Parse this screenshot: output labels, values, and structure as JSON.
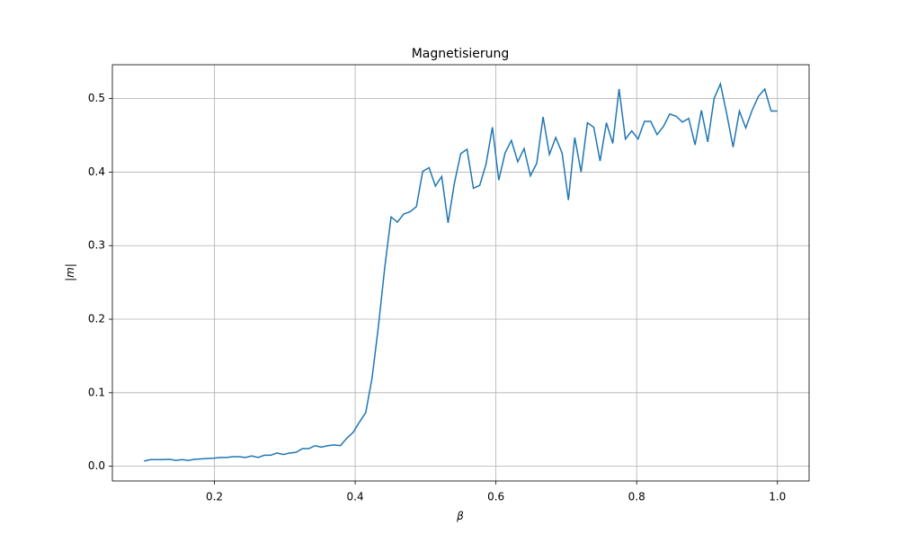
{
  "chart_data": {
    "type": "line",
    "title": "Magnetisierung",
    "xlabel": "β",
    "ylabel": "|m|",
    "x": [
      0.1,
      0.109,
      0.118,
      0.127,
      0.136,
      0.145,
      0.154,
      0.163,
      0.172,
      0.181,
      0.19,
      0.199,
      0.208,
      0.217,
      0.226,
      0.235,
      0.244,
      0.253,
      0.262,
      0.271,
      0.28,
      0.289,
      0.298,
      0.307,
      0.316,
      0.325,
      0.334,
      0.343,
      0.352,
      0.361,
      0.37,
      0.379,
      0.388,
      0.397,
      0.406,
      0.415,
      0.424,
      0.433,
      0.442,
      0.451,
      0.46,
      0.469,
      0.478,
      0.487,
      0.496,
      0.505,
      0.514,
      0.523,
      0.532,
      0.541,
      0.55,
      0.559,
      0.568,
      0.577,
      0.586,
      0.595,
      0.604,
      0.613,
      0.622,
      0.631,
      0.64,
      0.649,
      0.658,
      0.667,
      0.676,
      0.685,
      0.694,
      0.703,
      0.712,
      0.721,
      0.73,
      0.739,
      0.748,
      0.757,
      0.766,
      0.775,
      0.784,
      0.793,
      0.802,
      0.811,
      0.82,
      0.829,
      0.838,
      0.847,
      0.856,
      0.865,
      0.874,
      0.883,
      0.892,
      0.901,
      0.91,
      0.919,
      0.928,
      0.937,
      0.946,
      0.955,
      0.964,
      0.973,
      0.982,
      0.991,
      1.0
    ],
    "series": [
      {
        "name": "|m|",
        "color": "#1f77b4",
        "values": [
          0.007,
          0.009,
          0.009,
          0.009,
          0.0095,
          0.008,
          0.009,
          0.008,
          0.0095,
          0.01,
          0.0105,
          0.011,
          0.012,
          0.012,
          0.013,
          0.013,
          0.012,
          0.014,
          0.012,
          0.015,
          0.015,
          0.018,
          0.016,
          0.018,
          0.019,
          0.024,
          0.024,
          0.028,
          0.026,
          0.028,
          0.029,
          0.028,
          0.038,
          0.046,
          0.06,
          0.073,
          0.12,
          0.19,
          0.27,
          0.339,
          0.332,
          0.343,
          0.346,
          0.353,
          0.401,
          0.406,
          0.381,
          0.394,
          0.331,
          0.385,
          0.425,
          0.431,
          0.378,
          0.382,
          0.411,
          0.461,
          0.389,
          0.426,
          0.443,
          0.414,
          0.432,
          0.395,
          0.412,
          0.475,
          0.424,
          0.447,
          0.426,
          0.362,
          0.447,
          0.4,
          0.467,
          0.461,
          0.415,
          0.467,
          0.439,
          0.513,
          0.445,
          0.456,
          0.445,
          0.469,
          0.469,
          0.451,
          0.462,
          0.479,
          0.476,
          0.468,
          0.473,
          0.437,
          0.484,
          0.441,
          0.5,
          0.52,
          0.479,
          0.434,
          0.483,
          0.46,
          0.484,
          0.503,
          0.513,
          0.483,
          0.483
        ]
      }
    ],
    "xlim": [
      0.055,
      1.045
    ],
    "ylim": [
      -0.02,
      0.546
    ],
    "xticks": [
      0.2,
      0.4,
      0.6,
      0.8,
      {
        "value": 1,
        "label": "1.0"
      }
    ],
    "yticks": [
      {
        "value": 0,
        "label": "0.0"
      },
      0.1,
      0.2,
      0.3,
      0.4,
      0.5
    ],
    "grid": true
  }
}
